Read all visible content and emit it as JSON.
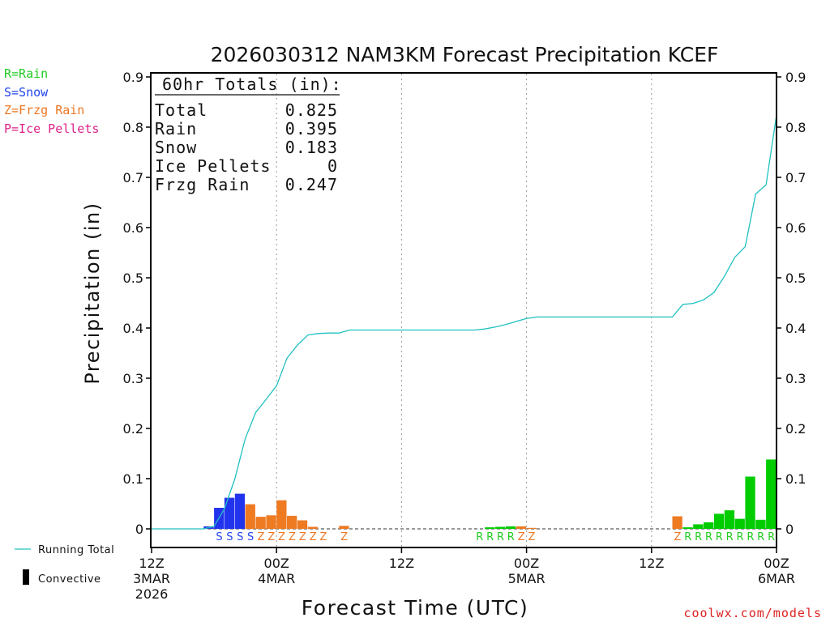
{
  "chart_data": {
    "type": "bar",
    "title": "2026030312 NAM3KM Forecast Precipitation KCEF",
    "xlabel": "Forecast Time (UTC)",
    "ylabel": "Precipitation (in)",
    "ylim": [
      0,
      0.9
    ],
    "xlim": [
      0,
      60
    ],
    "yticks": [
      "0",
      "0.1",
      "0.2",
      "0.3",
      "0.4",
      "0.5",
      "0.6",
      "0.7",
      "0.8",
      "0.9"
    ],
    "xticks": [
      {
        "hour": 0,
        "line1": "12Z",
        "line2": "3MAR",
        "line3": "2026"
      },
      {
        "hour": 12,
        "line1": "00Z",
        "line2": "4MAR",
        "line3": ""
      },
      {
        "hour": 24,
        "line1": "12Z",
        "line2": "",
        "line3": ""
      },
      {
        "hour": 36,
        "line1": "00Z",
        "line2": "5MAR",
        "line3": ""
      },
      {
        "hour": 48,
        "line1": "12Z",
        "line2": "",
        "line3": ""
      },
      {
        "hour": 60,
        "line1": "00Z",
        "line2": "6MAR",
        "line3": ""
      }
    ],
    "type_legend": [
      {
        "label": "R=Rain",
        "color": "#22cc22"
      },
      {
        "label": "S=Snow",
        "color": "#2244ee"
      },
      {
        "label": "Z=Frzg Rain",
        "color": "#ee7722"
      },
      {
        "label": "P=Ice Pellets",
        "color": "#dd2288"
      }
    ],
    "series_legend": {
      "running_total": "Running Total",
      "convective": "Convective"
    },
    "colors": {
      "R": "#00cc00",
      "S": "#2233ee",
      "Z": "#ee7a22",
      "P": "#dd2288",
      "running_total": "#20c0c0"
    },
    "letter_colors": {
      "R": "#22cc22",
      "S": "#2244ee",
      "Z": "#ee7722",
      "P": "#dd2288"
    },
    "totals": {
      "header": "60hr Totals (in):",
      "rows": [
        {
          "label": "Total",
          "value": "0.825"
        },
        {
          "label": "Rain",
          "value": "0.395"
        },
        {
          "label": "Snow",
          "value": "0.183"
        },
        {
          "label": "Ice Pellets",
          "value": "0"
        },
        {
          "label": "Frzg Rain",
          "value": "0.247"
        }
      ]
    },
    "bars": [
      {
        "hour": 6,
        "type": "S",
        "value": 0.005
      },
      {
        "hour": 7,
        "type": "S",
        "value": 0.042
      },
      {
        "hour": 8,
        "type": "S",
        "value": 0.062
      },
      {
        "hour": 9,
        "type": "S",
        "value": 0.07
      },
      {
        "hour": 10,
        "type": "Z",
        "value": 0.049
      },
      {
        "hour": 11,
        "type": "Z",
        "value": 0.024
      },
      {
        "hour": 12,
        "type": "Z",
        "value": 0.027
      },
      {
        "hour": 13,
        "type": "Z",
        "value": 0.057
      },
      {
        "hour": 14,
        "type": "Z",
        "value": 0.026
      },
      {
        "hour": 15,
        "type": "Z",
        "value": 0.017
      },
      {
        "hour": 16,
        "type": "Z",
        "value": 0.004
      },
      {
        "hour": 19,
        "type": "Z",
        "value": 0.006
      },
      {
        "hour": 33,
        "type": "R",
        "value": 0.003
      },
      {
        "hour": 34,
        "type": "R",
        "value": 0.004
      },
      {
        "hour": 35,
        "type": "R",
        "value": 0.005
      },
      {
        "hour": 36,
        "type": "Z",
        "value": 0.005
      },
      {
        "hour": 37,
        "type": "Z",
        "value": 0.002
      },
      {
        "hour": 51,
        "type": "Z",
        "value": 0.025
      },
      {
        "hour": 52,
        "type": "R",
        "value": 0.003
      },
      {
        "hour": 53,
        "type": "R",
        "value": 0.009
      },
      {
        "hour": 54,
        "type": "R",
        "value": 0.013
      },
      {
        "hour": 55,
        "type": "R",
        "value": 0.03
      },
      {
        "hour": 56,
        "type": "R",
        "value": 0.037
      },
      {
        "hour": 57,
        "type": "R",
        "value": 0.02
      },
      {
        "hour": 58,
        "type": "R",
        "value": 0.104
      },
      {
        "hour": 59,
        "type": "R",
        "value": 0.018
      },
      {
        "hour": 60,
        "type": "R",
        "value": 0.138
      }
    ],
    "type_letters": [
      {
        "hour": 7,
        "letter": "S"
      },
      {
        "hour": 8,
        "letter": "S"
      },
      {
        "hour": 9,
        "letter": "S"
      },
      {
        "hour": 10,
        "letter": "S"
      },
      {
        "hour": 11,
        "letter": "Z"
      },
      {
        "hour": 12,
        "letter": "Z"
      },
      {
        "hour": 13,
        "letter": "Z"
      },
      {
        "hour": 14,
        "letter": "Z"
      },
      {
        "hour": 15,
        "letter": "Z"
      },
      {
        "hour": 16,
        "letter": "Z"
      },
      {
        "hour": 17,
        "letter": "Z"
      },
      {
        "hour": 19,
        "letter": "Z"
      },
      {
        "hour": 32,
        "letter": "R"
      },
      {
        "hour": 33,
        "letter": "R"
      },
      {
        "hour": 34,
        "letter": "R"
      },
      {
        "hour": 35,
        "letter": "R"
      },
      {
        "hour": 36,
        "letter": "Z"
      },
      {
        "hour": 37,
        "letter": "Z"
      },
      {
        "hour": 51,
        "letter": "Z"
      },
      {
        "hour": 52,
        "letter": "R"
      },
      {
        "hour": 53,
        "letter": "R"
      },
      {
        "hour": 54,
        "letter": "R"
      },
      {
        "hour": 55,
        "letter": "R"
      },
      {
        "hour": 56,
        "letter": "R"
      },
      {
        "hour": 57,
        "letter": "R"
      },
      {
        "hour": 58,
        "letter": "R"
      },
      {
        "hour": 59,
        "letter": "R"
      },
      {
        "hour": 60,
        "letter": "R"
      }
    ],
    "running_total": {
      "hours": [
        0,
        5,
        6,
        7,
        8,
        9,
        10,
        11,
        12,
        13,
        14,
        15,
        16,
        17,
        18,
        19,
        20,
        30,
        31,
        32,
        33,
        34,
        35,
        36,
        37,
        38,
        50,
        51,
        52,
        53,
        54,
        55,
        56,
        57,
        58,
        59,
        60
      ],
      "values": [
        0,
        0,
        0.005,
        0.04,
        0.1,
        0.18,
        0.232,
        0.258,
        0.285,
        0.34,
        0.366,
        0.386,
        0.389,
        0.39,
        0.39,
        0.396,
        0.396,
        0.396,
        0.396,
        0.398,
        0.402,
        0.407,
        0.413,
        0.419,
        0.422,
        0.422,
        0.422,
        0.447,
        0.449,
        0.456,
        0.471,
        0.503,
        0.541,
        0.562,
        0.667,
        0.685,
        0.824
      ]
    },
    "watermark": "coolwx.com/models"
  }
}
